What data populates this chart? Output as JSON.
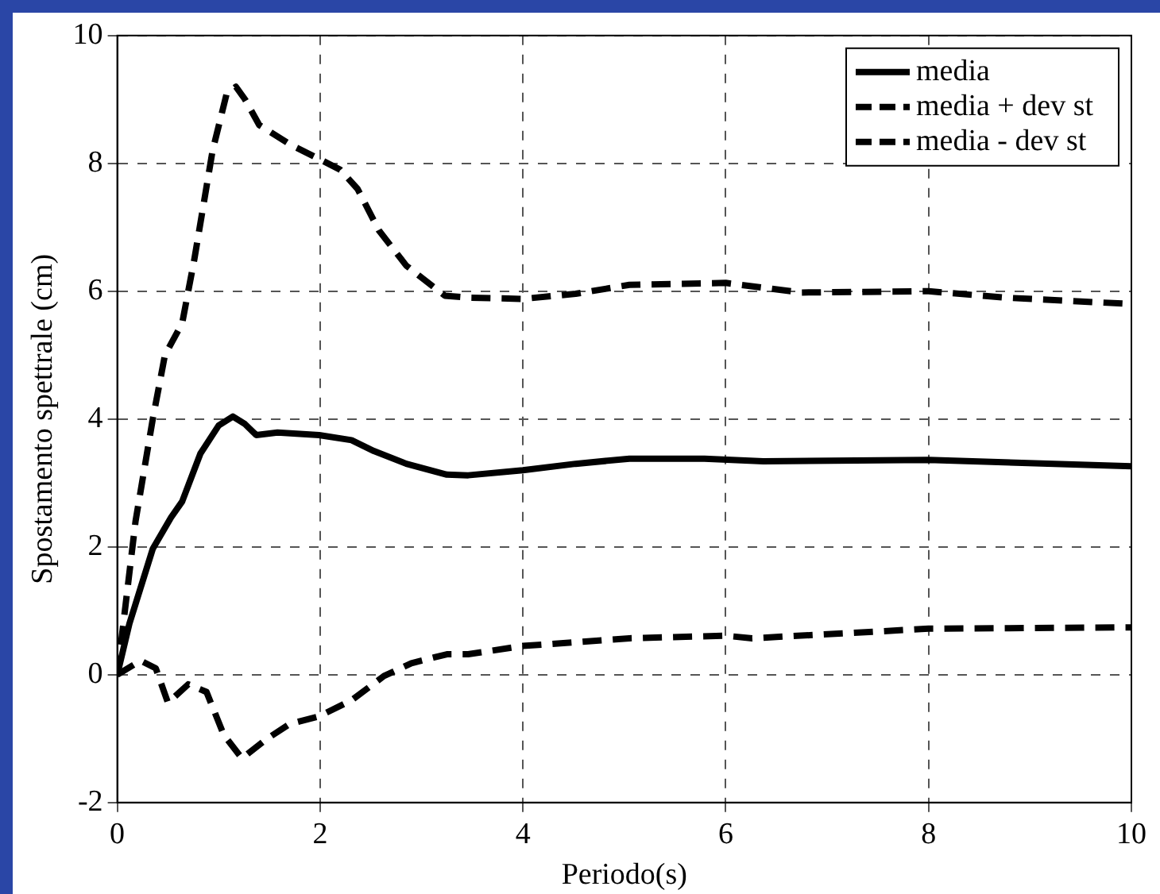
{
  "chart_data": {
    "type": "line",
    "xlabel": "Periodo(s)",
    "ylabel": "Spostamento spettrale (cm)",
    "xlim": [
      0,
      10
    ],
    "ylim": [
      -2,
      10
    ],
    "xticks": [
      0,
      2,
      4,
      6,
      8,
      10
    ],
    "yticks": [
      -2,
      0,
      2,
      4,
      6,
      8,
      10
    ],
    "grid": true,
    "legend": "top right",
    "marker": "none",
    "series": [
      {
        "name": "media",
        "color": "#000000",
        "line_style": "solid",
        "x": [
          0,
          0.12,
          0.35,
          0.53,
          0.64,
          0.82,
          1.0,
          1.14,
          1.26,
          1.37,
          1.58,
          1.99,
          2.31,
          2.53,
          2.85,
          3.25,
          3.46,
          4,
          4.52,
          5.05,
          5.79,
          6.37,
          8,
          10
        ],
        "values": [
          0,
          0.8,
          1.97,
          2.46,
          2.71,
          3.46,
          3.9,
          4.04,
          3.92,
          3.75,
          3.79,
          3.75,
          3.67,
          3.5,
          3.3,
          3.13,
          3.12,
          3.2,
          3.3,
          3.38,
          3.38,
          3.34,
          3.36,
          3.26
        ]
      },
      {
        "name": "media + dev st",
        "color": "#000000",
        "line_style": "dashed",
        "x": [
          0,
          0.18,
          0.35,
          0.47,
          0.64,
          0.76,
          0.94,
          1.08,
          1.17,
          1.26,
          1.4,
          1.7,
          1.99,
          2.2,
          2.37,
          2.58,
          2.85,
          3.23,
          3.46,
          4,
          4.52,
          5.05,
          6,
          6.74,
          8,
          8.75,
          10
        ],
        "values": [
          0,
          2.4,
          4.0,
          5.0,
          5.5,
          6.5,
          8.2,
          9.1,
          9.2,
          9.0,
          8.6,
          8.3,
          8.07,
          7.9,
          7.6,
          6.95,
          6.4,
          5.93,
          5.9,
          5.88,
          5.96,
          6.1,
          6.13,
          5.98,
          6.0,
          5.9,
          5.8
        ]
      },
      {
        "name": "media - dev st",
        "color": "#000000",
        "line_style": "dashed",
        "x": [
          0,
          0.23,
          0.38,
          0.5,
          0.7,
          0.88,
          1.05,
          1.23,
          1.46,
          1.7,
          1.99,
          2.31,
          2.63,
          2.9,
          3.25,
          3.46,
          4,
          5.05,
          6,
          6.26,
          8,
          10
        ],
        "values": [
          0,
          0.22,
          0.1,
          -0.44,
          -0.15,
          -0.27,
          -0.94,
          -1.31,
          -1.02,
          -0.77,
          -0.65,
          -0.4,
          -0.02,
          0.18,
          0.32,
          0.32,
          0.45,
          0.57,
          0.61,
          0.57,
          0.72,
          0.74
        ]
      }
    ]
  }
}
